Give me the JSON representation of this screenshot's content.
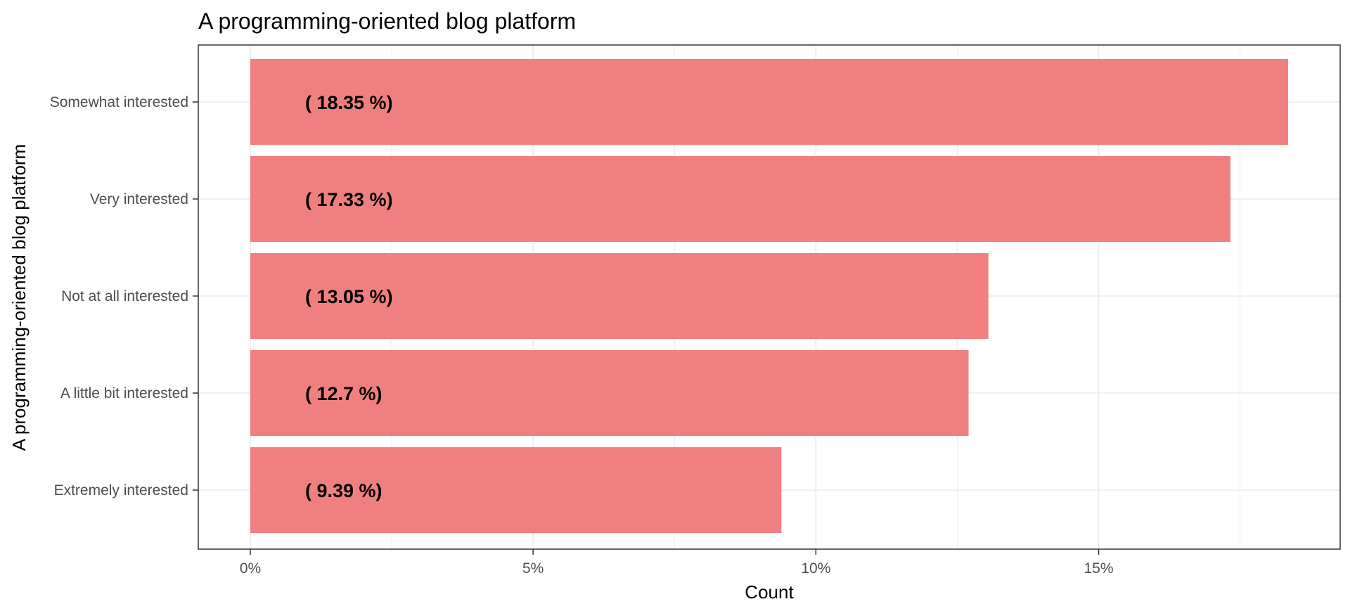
{
  "chart_data": {
    "type": "bar",
    "orientation": "horizontal",
    "title": "A programming-oriented blog platform",
    "xlabel": "Count",
    "ylabel": "A programming-oriented blog platform",
    "categories": [
      "Somewhat interested",
      "Very interested",
      "Not at all interested",
      "A little bit interested",
      "Extremely interested"
    ],
    "values": [
      18.35,
      17.33,
      13.05,
      12.7,
      9.39
    ],
    "data_labels": [
      "( 18.35 %)",
      "( 17.33 %)",
      "( 13.05 %)",
      "( 12.7 %)",
      "( 9.39 %)"
    ],
    "x_ticks": [
      0,
      5,
      10,
      15
    ],
    "x_tick_labels": [
      "0%",
      "5%",
      "10%",
      "15%"
    ],
    "xlim": [
      -0.92,
      19.27
    ],
    "grid": true,
    "legend": "none",
    "bar_color": "#f08080",
    "grid_color": "#ebebeb",
    "panel_border_color": "#333333"
  }
}
